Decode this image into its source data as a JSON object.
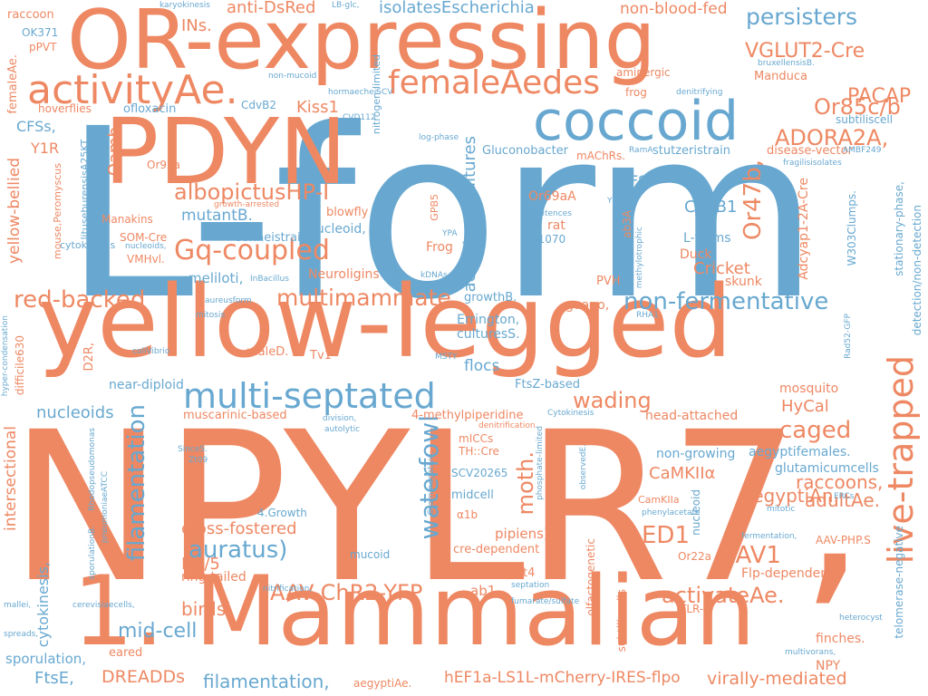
{
  "colors": {
    "orange": "#ee8863",
    "blue": "#68a8d0",
    "background": "#ffffff"
  },
  "words": {
    "npylr7": "NPYLR7,",
    "l_form": "L-form",
    "mammalian": "1. Mammalian",
    "yellow_legged": "yellow-legged",
    "or_expressing": "OR-expressing",
    "pdyn": "PDYN",
    "coccoid": "coccoid",
    "activity_ae": "activityAe.",
    "female_aedes": "femaleAedes",
    "multi_septated": "multi-septated",
    "live_trapped": "live-trapped",
    "gq_coupled": "Gq-coupled",
    "albopictus_hpi": "albopictusHP-I",
    "multimammate": "multimammate",
    "red_backed": "red-backed",
    "non_fermentative": "non-fermentative",
    "persisters": "persisters",
    "vglut2_cre": "VGLUT2-Cre",
    "pacap": "PACAP",
    "or85cb": "Or85c/b",
    "adora2a": "ADORA2A,",
    "or47b": "Or47b,",
    "filamentation_big": "filamentation",
    "waterfowl": "waterfowl",
    "auratus": "auratus)",
    "aav_chr2_yfp": "AAV-ChR2-YFP",
    "moth": "moth.",
    "ed1": "ED1",
    "aav1": "AAV1",
    "activate_ae": "activateAe.",
    "caged": "caged",
    "hycal": "HyCal",
    "wading": "wading",
    "cross_fostered": "cross-fostered",
    "mid_cell": "mid-cell",
    "birds": "birds'",
    "nucleoids_mid": "nucleoids",
    "aegypti_an": "aegyptiAn.",
    "raccoons": "raccoons,",
    "adult_ae": "adultAe.",
    "camkiia": "CaMKIIα",
    "dreadds": "DREADDs",
    "filamentation_bottom": "filamentation,",
    "virally_mediated": "virally-mediated",
    "hef1a": "hEF1a-LS1L-mCherry-IRES-flpo",
    "ftse": "FtsE,",
    "sporulation": "sporulation,",
    "cytokinesis_left": "cytokinesis,",
    "intersectional": "intersectional",
    "yellow_bellied": "yellow-bellied",
    "oamb": "Oamb",
    "kiss1": "Kiss1",
    "ins": "INs.",
    "anti_dsred": "anti-DsRed",
    "isolates_e": "isolatesEscherichia",
    "non_blood_fed": "non-blood-fed",
    "mutant_b": "mutantB.",
    "cdvb1": "CdvB1",
    "cricket": "Cricket",
    "skunk": "skunk",
    "duck": "Duck",
    "l_forms": "L-forms",
    "cfs": "CFS",
    "cfss": "CFSs,",
    "y1r": "Y1R",
    "d15": "D1/5",
    "ring_tailed": "ring-tailed",
    "aegypti_females": "aegyptifemales.",
    "glutamicum": "glutamicumcells",
    "finches": "finches.",
    "flp_dependent": "Flp-dependent",
    "aav_php": "AAV-PHP.S",
    "npy": "NPY",
    "head_attached": "head-attached",
    "mosquito": "mosquito",
    "non_growing": "non-growing",
    "eared": "eared",
    "flocs": "flocs",
    "errington": "Errington,",
    "cultures_s": "culturesS.",
    "growth_b": "growthB.",
    "guano": "guano,",
    "pvh": "PVH",
    "frog_big": "Frog",
    "rat": "rat",
    "or69aa": "Or69aA",
    "num_21070": "21070",
    "sonneistrain": "sonneistrain",
    "nucleoid_mid": "nucleoid,",
    "blowfly": "blowfly",
    "neuroligins": "Neuroligins",
    "meliloti": "meliloti,",
    "som_cre": "SOM-Cre",
    "vmhvl": "VMHvl.",
    "manakins": "Manakins",
    "or92a": "Or92a",
    "ofloxacin": "ofloxacin",
    "hoverflies": "hoverflies",
    "cdvb2": "CdvB2",
    "manduca": "Manduca",
    "aminergic": "aminergic",
    "frog_small": "frog",
    "disease_vector": "disease-vector",
    "stutzeri": "stutzeristrain",
    "subtilis_cell": "subtiliscell",
    "machrs": "mAChRs.",
    "gluconobacter": "Gluconobacter",
    "aeruginosa": "aeruginosacultures",
    "male_d": "maleD.",
    "tv1": "Tv1",
    "near_diploid": "near-diploid",
    "d2r": "D2R,",
    "muscarinic": "muscarinic-based",
    "methylpiperidine": "4-methylpiperidine",
    "ftsz": "FtsZ-based",
    "micc": "mICCs",
    "th_cre": "TH::Cre",
    "scv20265": "SCV20265",
    "midcell": "midcell",
    "alpha1b": "α1b",
    "cre_dependent": "cre-dependent",
    "pipiens": "pipiens)",
    "ab1": "ab1",
    "at4": "at4",
    "growth4": "4.Growth",
    "mucoid": "mucoid",
    "tlr3": "TLR-3",
    "or22a": "Or22a",
    "camkiia2": "CamKIIa",
    "nucleoid_v": "nucleoid",
    "olfactogenetic": "olfactogenetic",
    "subtilis_cells": "subtiliscells",
    "adcyap1": "Adcyap1-2A-Cre",
    "w303": "W303Clumps.",
    "stationary": "stationary-phase,",
    "detection": "detection/non-detection",
    "telomerase": "telomerase-negative",
    "ab3a": "ab3A",
    "gpb5": "GPB5",
    "raccoon": "raccoon",
    "ok371": "OK371",
    "ppvt": "pPVT",
    "female_ae": "femaleAe.",
    "karyokinesis": "karyokinesis",
    "lb_glc": "LB-glc,",
    "non_mucoid": "non-mucoid",
    "hormaechei": "hormaecheiSCV",
    "cvd112": "CVD112",
    "bruxellensis": "bruxellensisB.",
    "denitrifying": "denitrifying",
    "log_phase": "log-phase",
    "rama": "RamA",
    "fragilis": "fragilisisolates",
    "ambf249": "AMBF249",
    "ylmd": "YlmD",
    "visa": "VISA",
    "sentences": "Sentences",
    "ypa": "YPA",
    "kdnas": "kDNAs",
    "rha1": "RHA1",
    "msty": "MSTY",
    "division": "division,",
    "autolytic": "autolytic",
    "denitrification": "denitrification",
    "cytokinesis_small": "Cytokinesis",
    "sinces": "SinceS.",
    "zt09": "Zt09",
    "nitrification": "nitrification,",
    "septation": "septation",
    "fumarate": "fumarate/sulfate",
    "heterocyst": "heterocyst",
    "multivorans": "multivorans,",
    "fermentation": "fermentation,",
    "mitotic": "mitotic",
    "ercs": "ERCs",
    "phenylacetate": "phenylacetate",
    "rad52": "Rad52-GFP",
    "mitosis": "mitosis",
    "inbacillus": "InBacillus",
    "aureus_form": "aureusform",
    "coli_vibrio": "coliVibrio",
    "growth_arrested": "growth-arrested",
    "nucleoids_small": "nucleoids,",
    "cytokinesis_mid": "cytokinesis",
    "mouse_peromyscus": "mouse,Peromyscus",
    "lituseburensis": "lituseburensisA25KT,",
    "hyper_condensation": "hyper-condensation",
    "difficile": "difficile630",
    "rhodopseudomonas": "Rhodopseudomonas",
    "pneumoniae": "pneumoniaeATCC",
    "spreads": "spreads,",
    "mallei": "mallei,",
    "cerevisiae": "cerevisiaecells,",
    "sporulation_b": "sporulationB.",
    "nitrogen_limited": "nitrogen-limited",
    "gram_negative": "Gram-negative,",
    "phosphate_limited": "phosphate-limited",
    "observed_e": "observedE.",
    "methylotrophic": "methylotrophic",
    "aegypti_ae": "aegyptiAe."
  }
}
